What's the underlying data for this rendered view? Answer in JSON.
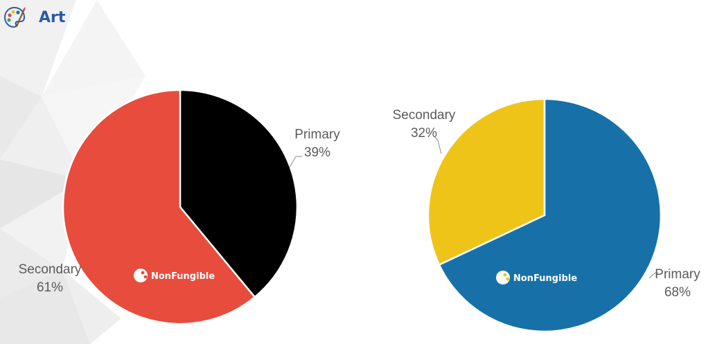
{
  "header": {
    "title": "Art",
    "icon": "palette-icon"
  },
  "watermark": {
    "text": "NonFungible"
  },
  "chart_data": [
    {
      "type": "pie",
      "title": "",
      "series": [
        {
          "label": "Primary",
          "value": 39,
          "display": "39%",
          "color": "#000000"
        },
        {
          "label": "Secondary",
          "value": 61,
          "display": "61%",
          "color": "#e84c3d"
        }
      ],
      "start_angle": "12 o'clock",
      "direction": "clockwise"
    },
    {
      "type": "pie",
      "title": "",
      "series": [
        {
          "label": "Primary",
          "value": 68,
          "display": "68%",
          "color": "#1771a8"
        },
        {
          "label": "Secondary",
          "value": 32,
          "display": "32%",
          "color": "#eec419"
        }
      ],
      "start_angle": "12 o'clock",
      "direction": "clockwise"
    }
  ]
}
